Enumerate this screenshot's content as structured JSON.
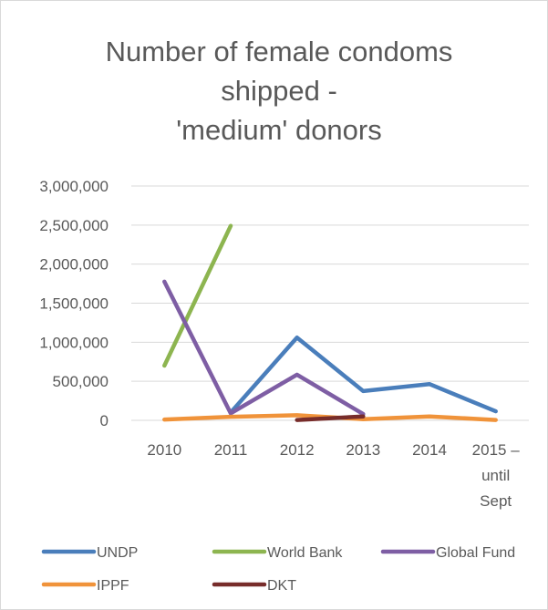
{
  "chart_data": {
    "type": "line",
    "title_lines": [
      "Number of female condoms",
      "shipped -",
      "'medium' donors"
    ],
    "categories": [
      [
        "2010"
      ],
      [
        "2011"
      ],
      [
        "2012"
      ],
      [
        "2013"
      ],
      [
        "2014"
      ],
      [
        "2015 –",
        "until",
        "Sept"
      ]
    ],
    "yticks": [
      "0",
      "500,000",
      "1,000,000",
      "1,500,000",
      "2,000,000",
      "2,500,000",
      "3,000,000"
    ],
    "ylim": [
      0,
      3000000
    ],
    "grid": true,
    "legend_position": "bottom",
    "series": [
      {
        "name": "UNDP",
        "color": "#4a7ebb",
        "values": [
          null,
          100000,
          1060000,
          375000,
          465000,
          115000
        ]
      },
      {
        "name": "World Bank",
        "color": "#8db550",
        "values": [
          700000,
          2490000,
          null,
          null,
          null,
          null
        ]
      },
      {
        "name": "Global Fund",
        "color": "#7e5ea4",
        "values": [
          1775000,
          90000,
          585000,
          80000,
          null,
          null
        ]
      },
      {
        "name": "IPPF",
        "color": "#f0933a",
        "values": [
          10000,
          45000,
          65000,
          15000,
          50000,
          5000
        ]
      },
      {
        "name": "DKT",
        "color": "#772c2a",
        "values": [
          null,
          null,
          5000,
          50000,
          null,
          null
        ]
      }
    ]
  }
}
